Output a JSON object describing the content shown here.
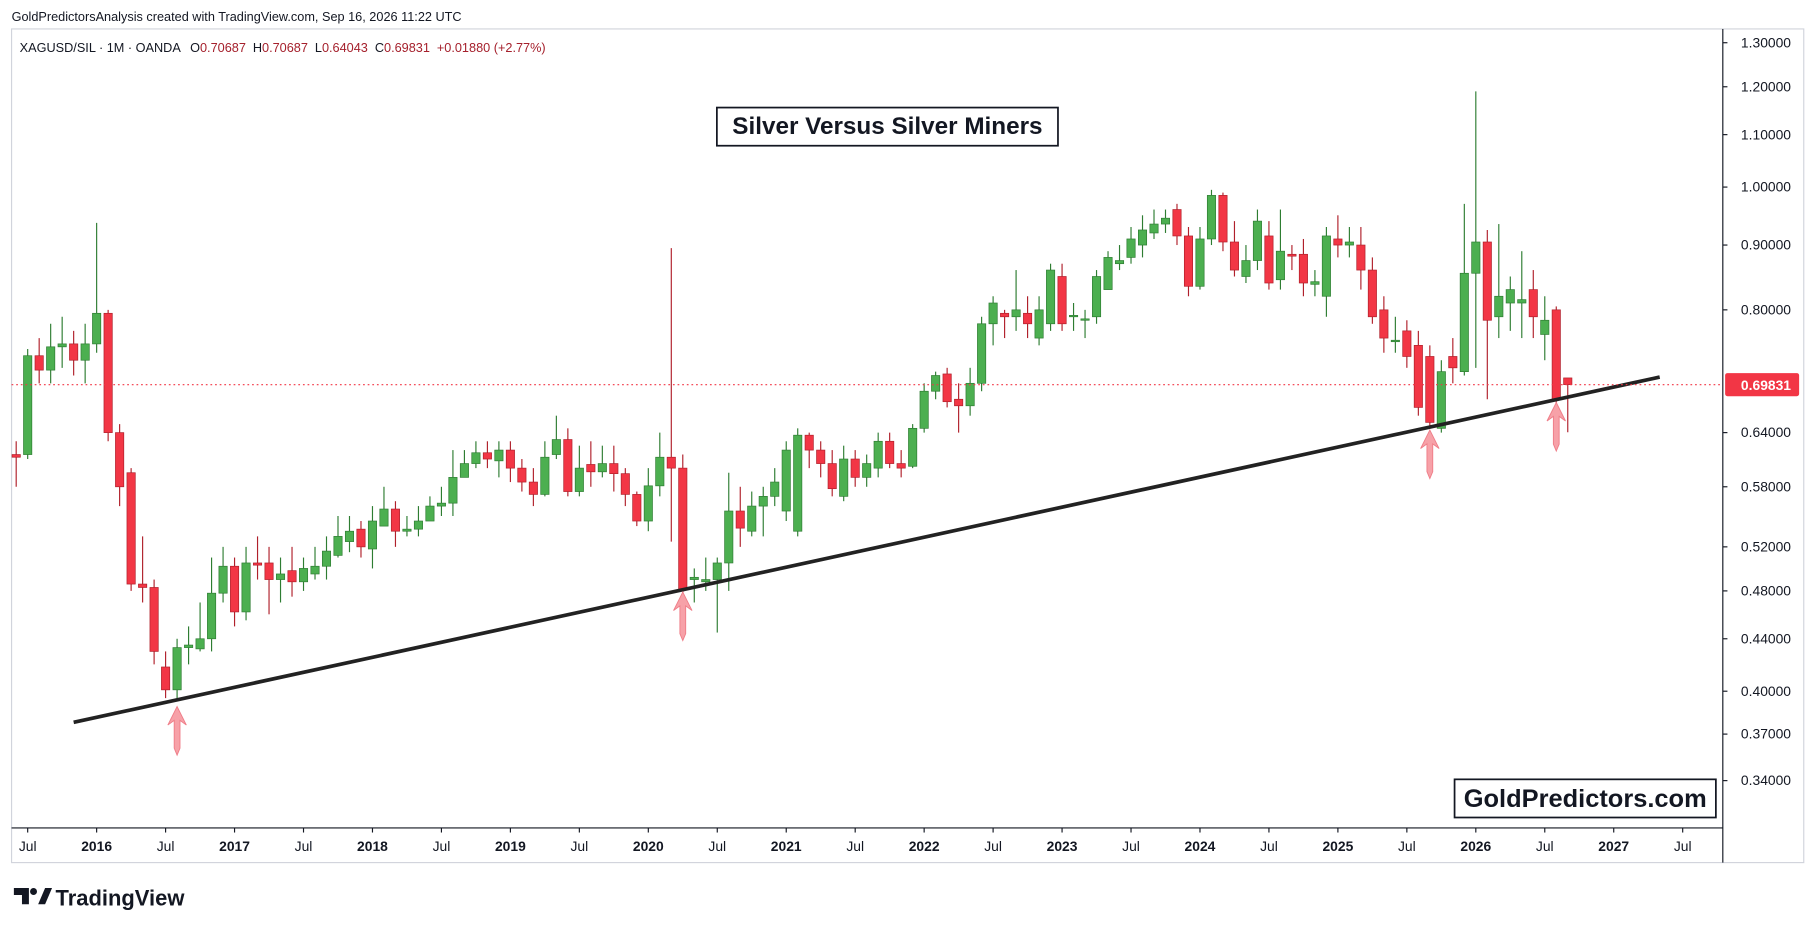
{
  "header": "GoldPredictorsAnalysis created with TradingView.com, Sep 16, 2026 11:22 UTC",
  "legend": {
    "symbol": "XAGUSD/SIL · 1M · OANDA",
    "labels": [
      "O",
      "H",
      "L",
      "C"
    ],
    "change": "+0.01880 (+2.77%)"
  },
  "watermark": "GoldPredictors.com",
  "footer": "TradingView",
  "chart_data": {
    "type": "candlestick",
    "title": "Silver Versus Silver Miners",
    "log_scale": true,
    "grid": false,
    "up_color": "#4caf50",
    "down_color": "#f23645",
    "trendline_color": "#222222",
    "arrow_color": "#f7a1a8",
    "x": [
      "2015-06",
      "2015-07",
      "2015-08",
      "2015-09",
      "2015-10",
      "2015-11",
      "2015-12",
      "2016-01",
      "2016-02",
      "2016-03",
      "2016-04",
      "2016-05",
      "2016-06",
      "2016-07",
      "2016-08",
      "2016-09",
      "2016-10",
      "2016-11",
      "2016-12",
      "2017-01",
      "2017-02",
      "2017-03",
      "2017-04",
      "2017-05",
      "2017-06",
      "2017-07",
      "2017-08",
      "2017-09",
      "2017-10",
      "2017-11",
      "2017-12",
      "2018-01",
      "2018-02",
      "2018-03",
      "2018-04",
      "2018-05",
      "2018-06",
      "2018-07",
      "2018-08",
      "2018-09",
      "2018-10",
      "2018-11",
      "2018-12",
      "2019-01",
      "2019-02",
      "2019-03",
      "2019-04",
      "2019-05",
      "2019-06",
      "2019-07",
      "2019-08",
      "2019-09",
      "2019-10",
      "2019-11",
      "2019-12",
      "2020-01",
      "2020-02",
      "2020-03",
      "2020-04",
      "2020-05",
      "2020-06",
      "2020-07",
      "2020-08",
      "2020-09",
      "2020-10",
      "2020-11",
      "2020-12",
      "2021-01",
      "2021-02",
      "2021-03",
      "2021-04",
      "2021-05",
      "2021-06",
      "2021-07",
      "2021-08",
      "2021-09",
      "2021-10",
      "2021-11",
      "2021-12",
      "2022-01",
      "2022-02",
      "2022-03",
      "2022-04",
      "2022-05",
      "2022-06",
      "2022-07",
      "2022-08",
      "2022-09",
      "2022-10",
      "2022-11",
      "2022-12",
      "2023-01",
      "2023-02",
      "2023-03",
      "2023-04",
      "2023-05",
      "2023-06",
      "2023-07",
      "2023-08",
      "2023-09",
      "2023-10",
      "2023-11",
      "2023-12",
      "2024-01",
      "2024-02",
      "2024-03",
      "2024-04",
      "2024-05",
      "2024-06",
      "2024-07",
      "2024-08",
      "2024-09",
      "2024-10",
      "2024-11",
      "2024-12",
      "2025-01",
      "2025-02",
      "2025-03",
      "2025-04",
      "2025-05",
      "2025-06",
      "2025-07",
      "2025-08",
      "2025-09",
      "2025-10",
      "2025-11",
      "2025-12",
      "2026-01",
      "2026-02",
      "2026-03",
      "2026-04",
      "2026-05",
      "2026-06",
      "2026-07",
      "2026-08",
      "2026-09"
    ],
    "open": [
      0.615,
      0.615,
      0.736,
      0.717,
      0.748,
      0.752,
      0.73,
      0.752,
      0.795,
      0.64,
      0.595,
      0.486,
      0.483,
      0.418,
      0.401,
      0.433,
      0.432,
      0.44,
      0.478,
      0.502,
      0.462,
      0.505,
      0.505,
      0.49,
      0.498,
      0.488,
      0.495,
      0.502,
      0.512,
      0.525,
      0.537,
      0.518,
      0.54,
      0.557,
      0.535,
      0.537,
      0.545,
      0.56,
      0.563,
      0.59,
      0.605,
      0.617,
      0.608,
      0.62,
      0.6,
      0.585,
      0.572,
      0.615,
      0.632,
      0.575,
      0.604,
      0.596,
      0.605,
      0.594,
      0.572,
      0.545,
      0.581,
      0.612,
      0.6,
      0.49,
      0.488,
      0.49,
      0.505,
      0.555,
      0.535,
      0.56,
      0.57,
      0.555,
      0.535,
      0.637,
      0.62,
      0.605,
      0.57,
      0.61,
      0.59,
      0.6,
      0.63,
      0.605,
      0.602,
      0.645,
      0.69,
      0.712,
      0.68,
      0.672,
      0.7,
      0.78,
      0.795,
      0.79,
      0.795,
      0.76,
      0.78,
      0.85,
      0.79,
      0.785,
      0.79,
      0.83,
      0.87,
      0.88,
      0.9,
      0.92,
      0.935,
      0.96,
      0.915,
      0.835,
      0.91,
      0.985,
      0.905,
      0.85,
      0.875,
      0.915,
      0.845,
      0.885,
      0.885,
      0.838,
      0.82,
      0.91,
      0.9,
      0.9,
      0.86,
      0.8,
      0.755,
      0.77,
      0.75,
      0.735,
      0.645,
      0.735,
      0.715,
      0.855,
      0.905,
      0.79,
      0.81,
      0.81,
      0.83,
      0.765,
      0.8,
      0.70687
    ],
    "high": [
      0.63,
      0.745,
      0.76,
      0.78,
      0.79,
      0.77,
      0.78,
      0.937,
      0.8,
      0.65,
      0.6,
      0.53,
      0.49,
      0.43,
      0.44,
      0.45,
      0.47,
      0.51,
      0.52,
      0.51,
      0.52,
      0.53,
      0.52,
      0.51,
      0.52,
      0.51,
      0.52,
      0.53,
      0.55,
      0.55,
      0.545,
      0.56,
      0.58,
      0.565,
      0.55,
      0.56,
      0.57,
      0.58,
      0.62,
      0.62,
      0.63,
      0.63,
      0.63,
      0.63,
      0.61,
      0.6,
      0.63,
      0.66,
      0.645,
      0.625,
      0.63,
      0.625,
      0.625,
      0.6,
      0.575,
      0.6,
      0.64,
      0.895,
      0.615,
      0.5,
      0.51,
      0.51,
      0.595,
      0.58,
      0.575,
      0.58,
      0.6,
      0.63,
      0.645,
      0.64,
      0.63,
      0.62,
      0.625,
      0.62,
      0.615,
      0.64,
      0.64,
      0.62,
      0.65,
      0.7,
      0.715,
      0.72,
      0.7,
      0.72,
      0.79,
      0.82,
      0.8,
      0.86,
      0.82,
      0.82,
      0.87,
      0.87,
      0.81,
      0.8,
      0.86,
      0.89,
      0.9,
      0.93,
      0.95,
      0.96,
      0.96,
      0.97,
      0.93,
      0.93,
      0.995,
      0.99,
      0.94,
      0.9,
      0.96,
      0.94,
      0.96,
      0.9,
      0.91,
      0.86,
      0.93,
      0.95,
      0.93,
      0.93,
      0.88,
      0.82,
      0.79,
      0.785,
      0.77,
      0.75,
      0.73,
      0.76,
      0.97,
      1.19,
      0.925,
      0.935,
      0.85,
      0.89,
      0.86,
      0.82,
      0.805,
      0.70687
    ],
    "low": [
      0.58,
      0.61,
      0.7,
      0.7,
      0.72,
      0.71,
      0.7,
      0.74,
      0.63,
      0.56,
      0.48,
      0.47,
      0.42,
      0.395,
      0.393,
      0.42,
      0.43,
      0.43,
      0.47,
      0.45,
      0.455,
      0.49,
      0.46,
      0.47,
      0.475,
      0.48,
      0.49,
      0.49,
      0.51,
      0.515,
      0.51,
      0.5,
      0.54,
      0.52,
      0.53,
      0.53,
      0.545,
      0.55,
      0.55,
      0.59,
      0.6,
      0.6,
      0.59,
      0.585,
      0.575,
      0.56,
      0.57,
      0.61,
      0.57,
      0.57,
      0.58,
      0.59,
      0.575,
      0.56,
      0.54,
      0.535,
      0.57,
      0.525,
      0.475,
      0.47,
      0.48,
      0.445,
      0.48,
      0.52,
      0.53,
      0.53,
      0.56,
      0.545,
      0.53,
      0.6,
      0.59,
      0.57,
      0.565,
      0.58,
      0.58,
      0.59,
      0.6,
      0.59,
      0.6,
      0.64,
      0.68,
      0.67,
      0.64,
      0.66,
      0.69,
      0.75,
      0.76,
      0.77,
      0.76,
      0.75,
      0.77,
      0.77,
      0.77,
      0.76,
      0.78,
      0.83,
      0.86,
      0.87,
      0.88,
      0.91,
      0.92,
      0.9,
      0.82,
      0.83,
      0.9,
      0.89,
      0.85,
      0.84,
      0.86,
      0.83,
      0.83,
      0.86,
      0.82,
      0.82,
      0.79,
      0.88,
      0.88,
      0.83,
      0.78,
      0.74,
      0.74,
      0.72,
      0.66,
      0.645,
      0.64,
      0.7,
      0.71,
      0.72,
      0.68,
      0.76,
      0.77,
      0.76,
      0.76,
      0.73,
      0.665,
      0.64043
    ],
    "close": [
      0.612,
      0.736,
      0.717,
      0.748,
      0.752,
      0.73,
      0.752,
      0.795,
      0.64,
      0.58,
      0.486,
      0.483,
      0.43,
      0.401,
      0.433,
      0.435,
      0.44,
      0.478,
      0.502,
      0.462,
      0.505,
      0.503,
      0.49,
      0.495,
      0.488,
      0.5,
      0.502,
      0.516,
      0.53,
      0.535,
      0.52,
      0.545,
      0.557,
      0.535,
      0.537,
      0.545,
      0.56,
      0.563,
      0.59,
      0.605,
      0.617,
      0.61,
      0.62,
      0.6,
      0.585,
      0.572,
      0.612,
      0.632,
      0.575,
      0.6,
      0.596,
      0.605,
      0.594,
      0.572,
      0.545,
      0.581,
      0.612,
      0.6,
      0.481,
      0.492,
      0.49,
      0.505,
      0.555,
      0.538,
      0.56,
      0.57,
      0.585,
      0.62,
      0.637,
      0.62,
      0.605,
      0.578,
      0.61,
      0.59,
      0.605,
      0.63,
      0.605,
      0.6,
      0.645,
      0.69,
      0.71,
      0.677,
      0.672,
      0.7,
      0.78,
      0.81,
      0.79,
      0.8,
      0.78,
      0.8,
      0.86,
      0.78,
      0.792,
      0.787,
      0.85,
      0.88,
      0.875,
      0.91,
      0.925,
      0.935,
      0.945,
      0.915,
      0.835,
      0.91,
      0.985,
      0.905,
      0.86,
      0.875,
      0.94,
      0.84,
      0.89,
      0.882,
      0.84,
      0.842,
      0.915,
      0.9,
      0.905,
      0.86,
      0.79,
      0.76,
      0.757,
      0.735,
      0.67,
      0.652,
      0.715,
      0.72,
      0.855,
      0.905,
      0.785,
      0.82,
      0.83,
      0.815,
      0.79,
      0.785,
      0.6795,
      0.69831
    ],
    "ylim": [
      0.312,
      1.333
    ],
    "yticks": [
      {
        "value": 0.34,
        "label": "0.34000"
      },
      {
        "value": 0.37,
        "label": "0.37000"
      },
      {
        "value": 0.4,
        "label": "0.40000"
      },
      {
        "value": 0.44,
        "label": "0.44000"
      },
      {
        "value": 0.48,
        "label": "0.48000"
      },
      {
        "value": 0.52,
        "label": "0.52000"
      },
      {
        "value": 0.58,
        "label": "0.58000"
      },
      {
        "value": 0.64,
        "label": "0.64000"
      },
      {
        "value": 0.8,
        "label": "0.80000"
      },
      {
        "value": 0.9,
        "label": "0.90000"
      },
      {
        "value": 1.0,
        "label": "1.00000"
      },
      {
        "value": 1.1,
        "label": "1.10000"
      },
      {
        "value": 1.2,
        "label": "1.20000"
      },
      {
        "value": 1.3,
        "label": "1.30000"
      }
    ],
    "xticks": [
      {
        "value": "2015-07",
        "label": "Jul"
      },
      {
        "value": "2016-01",
        "label": "2016"
      },
      {
        "value": "2016-07",
        "label": "Jul"
      },
      {
        "value": "2017-01",
        "label": "2017"
      },
      {
        "value": "2017-07",
        "label": "Jul"
      },
      {
        "value": "2018-01",
        "label": "2018"
      },
      {
        "value": "2018-07",
        "label": "Jul"
      },
      {
        "value": "2019-01",
        "label": "2019"
      },
      {
        "value": "2019-07",
        "label": "Jul"
      },
      {
        "value": "2020-01",
        "label": "2020"
      },
      {
        "value": "2020-07",
        "label": "Jul"
      },
      {
        "value": "2021-01",
        "label": "2021"
      },
      {
        "value": "2021-07",
        "label": "Jul"
      },
      {
        "value": "2022-01",
        "label": "2022"
      },
      {
        "value": "2022-07",
        "label": "Jul"
      },
      {
        "value": "2023-01",
        "label": "2023"
      },
      {
        "value": "2023-07",
        "label": "Jul"
      },
      {
        "value": "2024-01",
        "label": "2024"
      },
      {
        "value": "2024-07",
        "label": "Jul"
      },
      {
        "value": "2025-01",
        "label": "2025"
      },
      {
        "value": "2025-07",
        "label": "Jul"
      },
      {
        "value": "2026-01",
        "label": "2026"
      },
      {
        "value": "2026-07",
        "label": "Jul"
      },
      {
        "value": "2027-01",
        "label": "2027"
      },
      {
        "value": "2027-07",
        "label": "Jul"
      }
    ],
    "trendline": {
      "x": [
        "2015-11",
        "2027-05"
      ],
      "values": [
        0.378,
        0.708
      ]
    },
    "arrows": {
      "x": [
        "2016-08",
        "2020-04",
        "2025-09",
        "2026-08"
      ],
      "values": [
        0.389,
        0.479,
        0.643,
        0.676
      ]
    }
  }
}
